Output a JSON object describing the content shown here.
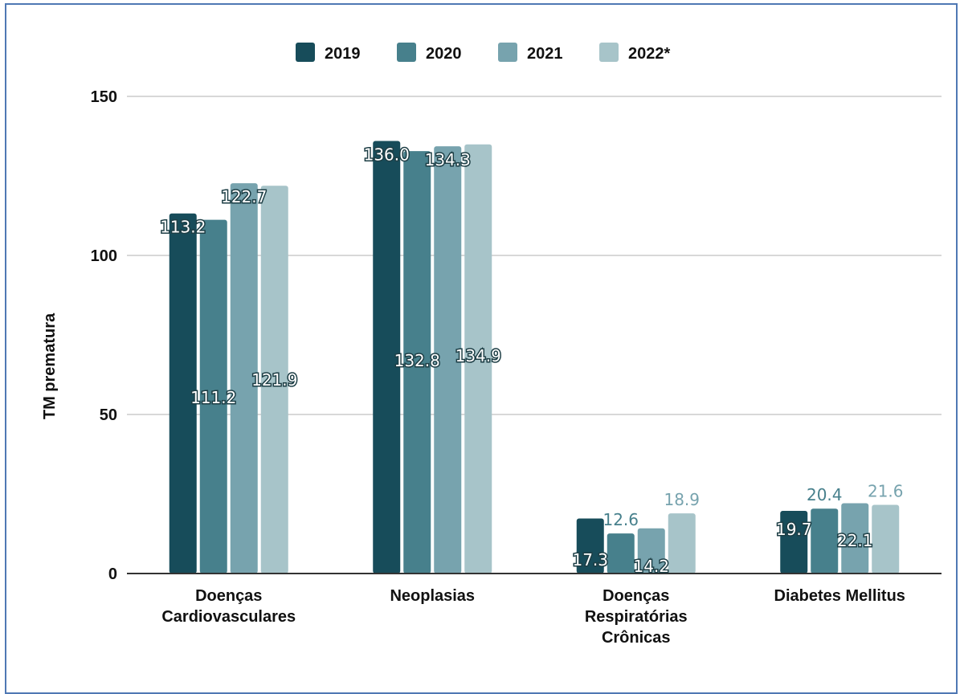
{
  "chart_data": {
    "type": "bar",
    "title": "",
    "xlabel": "",
    "ylabel": "TM prematura",
    "ylim": [
      0,
      150
    ],
    "yticks": [
      0,
      50,
      100,
      150
    ],
    "grid": true,
    "legend_position": "top",
    "categories": [
      [
        "Doenças",
        "Cardiovasculares"
      ],
      [
        "Neoplasias"
      ],
      [
        "Doenças",
        "Respiratórias",
        "Crônicas"
      ],
      [
        "Diabetes Mellitus"
      ]
    ],
    "series": [
      {
        "name": "2019",
        "color": "#174c5a",
        "values": [
          113.2,
          136.0,
          17.3,
          19.7
        ]
      },
      {
        "name": "2020",
        "color": "#47808c",
        "values": [
          111.2,
          132.8,
          12.6,
          20.4
        ]
      },
      {
        "name": "2021",
        "color": "#77a3ae",
        "values": [
          122.7,
          134.3,
          14.2,
          22.1
        ]
      },
      {
        "name": "2022*",
        "color": "#a7c4c9",
        "values": [
          121.9,
          134.9,
          18.9,
          21.6
        ]
      }
    ]
  }
}
